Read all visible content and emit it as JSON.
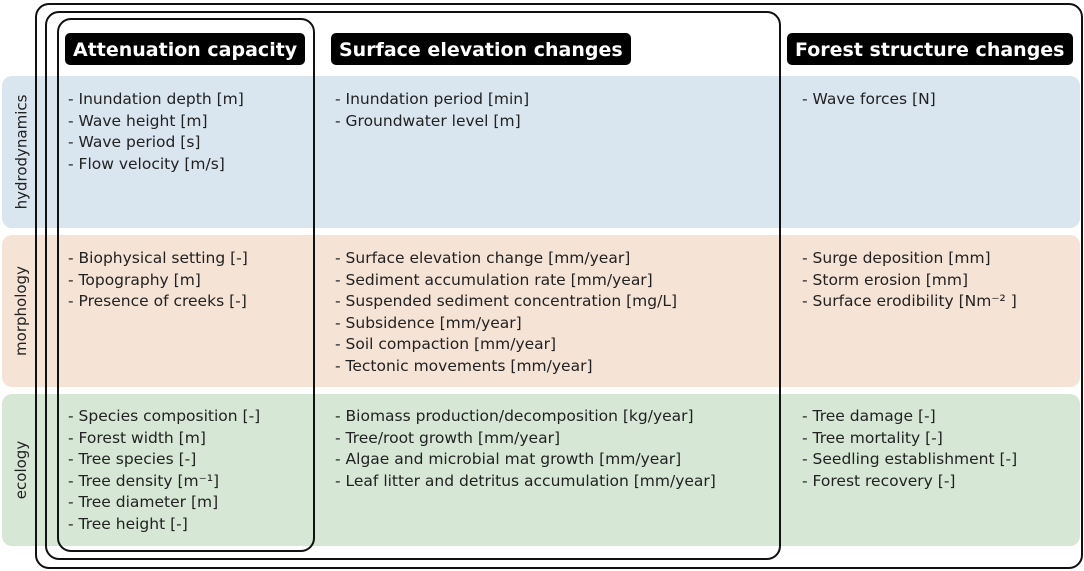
{
  "colors": {
    "hydrodynamics": "#d9e5ef",
    "morphology": "#f5e3d6",
    "ecology": "#d6e8d5",
    "frame": "#111111",
    "title_bg": "#000000",
    "title_text": "#ffffff"
  },
  "columns": [
    {
      "title": "Attenuation capacity"
    },
    {
      "title": "Surface elevation changes"
    },
    {
      "title": "Forest structure changes"
    }
  ],
  "rows": [
    {
      "label": "hydrodynamics",
      "cells": [
        [
          "Inundation depth [m]",
          "Wave height [m]",
          "Wave period [s]",
          "Flow velocity [m/s]"
        ],
        [
          "Inundation period [min]",
          "Groundwater level [m]"
        ],
        [
          "Wave forces [N]"
        ]
      ]
    },
    {
      "label": "morphology",
      "cells": [
        [
          "Biophysical setting [-]",
          "Topography [m]",
          "Presence of creeks [-]"
        ],
        [
          "Surface elevation change [mm/year]",
          "Sediment accumulation rate [mm/year]",
          "Suspended sediment concentration [mg/L]",
          "Subsidence [mm/year]",
          "Soil compaction [mm/year]",
          "Tectonic movements [mm/year]"
        ],
        [
          "Surge deposition [mm]",
          "Storm erosion [mm]",
          "Surface erodibility [Nm⁻² ]"
        ]
      ]
    },
    {
      "label": "ecology",
      "cells": [
        [
          "Species composition [-]",
          "Forest width [m]",
          "Tree species [-]",
          "Tree density [m⁻¹]",
          "Tree diameter [m]",
          "Tree height [-]"
        ],
        [
          "Biomass production/decomposition [kg/year]",
          "Tree/root growth [mm/year]",
          "Algae and microbial mat growth [mm/year]",
          "Leaf litter and detritus accumulation [mm/year]"
        ],
        [
          "Tree damage [-]",
          "Tree mortality [-]",
          "Seedling establishment [-]",
          "Forest recovery [-]"
        ]
      ]
    }
  ]
}
